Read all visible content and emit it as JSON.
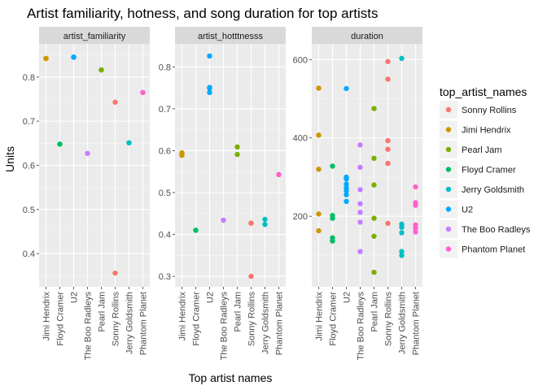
{
  "chart_data": {
    "type": "scatter",
    "title": "Artist familiarity, hotness, and song duration for top artists",
    "xlabel": "Top artist names",
    "ylabel": "Units",
    "grid": true,
    "legend": {
      "title": "top_artist_names",
      "position": "right"
    },
    "categories": [
      "Jimi Hendrix",
      "Floyd Cramer",
      "U2",
      "The Boo Radleys",
      "Pearl Jam",
      "Sonny Rollins",
      "Jerry Goldsmith",
      "Phantom Planet"
    ],
    "series": [
      {
        "name": "Sonny Rollins",
        "color": "#F8766D"
      },
      {
        "name": "Jimi Hendrix",
        "color": "#CD9600"
      },
      {
        "name": "Pearl Jam",
        "color": "#7CAE00"
      },
      {
        "name": "Floyd Cramer",
        "color": "#00BE67"
      },
      {
        "name": "Jerry Goldsmith",
        "color": "#00BFC4"
      },
      {
        "name": "U2",
        "color": "#00A9FF"
      },
      {
        "name": "The Boo Radleys",
        "color": "#C77CFF"
      },
      {
        "name": "Phantom Planet",
        "color": "#FF61CC"
      }
    ],
    "panels": [
      {
        "strip": "artist_familiarity",
        "ylim": [
          0.325,
          0.875
        ],
        "yticks": [
          0.4,
          0.5,
          0.6,
          0.7,
          0.8
        ],
        "ytick_labels": [
          "0.4",
          "0.5",
          "0.6",
          "0.7",
          "0.8"
        ],
        "points": [
          {
            "artist": "Jimi Hendrix",
            "values": [
              0.842,
              0.842,
              0.842
            ]
          },
          {
            "artist": "Floyd Cramer",
            "values": [
              0.648,
              0.648
            ]
          },
          {
            "artist": "U2",
            "values": [
              0.845,
              0.845,
              0.845
            ]
          },
          {
            "artist": "The Boo Radleys",
            "values": [
              0.627
            ]
          },
          {
            "artist": "Pearl Jam",
            "values": [
              0.816,
              0.816
            ]
          },
          {
            "artist": "Sonny Rollins",
            "values": [
              0.743,
              0.356
            ]
          },
          {
            "artist": "Jerry Goldsmith",
            "values": [
              0.651,
              0.651
            ]
          },
          {
            "artist": "Phantom Planet",
            "values": [
              0.765,
              0.765
            ]
          }
        ]
      },
      {
        "strip": "artist_hotttnesss",
        "ylim": [
          0.275,
          0.855
        ],
        "yticks": [
          0.3,
          0.4,
          0.5,
          0.6,
          0.7,
          0.8
        ],
        "ytick_labels": [
          "0.3",
          "0.4",
          "0.5",
          "0.6",
          "0.7",
          "0.8"
        ],
        "points": [
          {
            "artist": "Jimi Hendrix",
            "values": [
              0.595,
              0.589,
              0.591
            ]
          },
          {
            "artist": "Floyd Cramer",
            "values": [
              0.41,
              0.41
            ]
          },
          {
            "artist": "U2",
            "values": [
              0.826,
              0.751,
              0.749,
              0.739
            ]
          },
          {
            "artist": "The Boo Radleys",
            "values": [
              0.434,
              0.434
            ]
          },
          {
            "artist": "Pearl Jam",
            "values": [
              0.609,
              0.591
            ]
          },
          {
            "artist": "Sonny Rollins",
            "values": [
              0.427,
              0.427,
              0.3
            ]
          },
          {
            "artist": "Jerry Goldsmith",
            "values": [
              0.436,
              0.424
            ]
          },
          {
            "artist": "Phantom Planet",
            "values": [
              0.543,
              0.543
            ]
          }
        ]
      },
      {
        "strip": "duration",
        "ylim": [
          20,
          640
        ],
        "yticks": [
          200,
          400,
          600
        ],
        "ytick_labels": [
          "200",
          "400",
          "600"
        ],
        "points": [
          {
            "artist": "Jimi Hendrix",
            "values": [
              527,
              407,
              320,
              206,
              163
            ]
          },
          {
            "artist": "Floyd Cramer",
            "values": [
              328,
              202,
              195,
              145,
              137
            ]
          },
          {
            "artist": "U2",
            "values": [
              526,
              300,
              295,
              282,
              272,
              265,
              255,
              238
            ]
          },
          {
            "artist": "The Boo Radleys",
            "values": [
              382,
              325,
              268,
              232,
              210,
              185,
              110
            ]
          },
          {
            "artist": "Pearl Jam",
            "values": [
              475,
              348,
              280,
              195,
              149,
              57
            ]
          },
          {
            "artist": "Sonny Rollins",
            "values": [
              595,
              550,
              393,
              371,
              335,
              182
            ]
          },
          {
            "artist": "Jerry Goldsmith",
            "values": [
              603,
              180,
              172,
              158,
              110,
              100
            ]
          },
          {
            "artist": "Phantom Planet",
            "values": [
              275,
              235,
              228,
              178,
              170,
              160
            ]
          }
        ]
      }
    ]
  }
}
